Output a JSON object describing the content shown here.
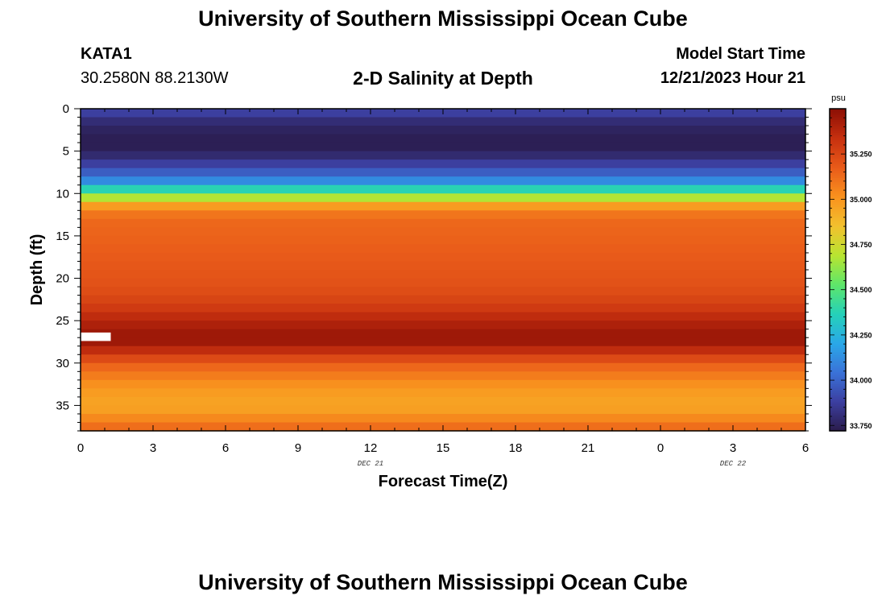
{
  "page": {
    "title": "University of Southern Mississippi Ocean Cube",
    "title_bottom": "University of Southern Mississippi Ocean Cube",
    "station_id": "KATA1",
    "coords": "30.2580N  88.2130W",
    "subtitle": "2-D Salinity at Depth",
    "model_start_label": "Model Start Time",
    "model_start_value": "12/21/2023 Hour 21"
  },
  "chart_data": {
    "type": "heatmap",
    "title": "2-D Salinity at Depth",
    "xlabel": "Forecast Time(Z)",
    "ylabel": "Depth (ft)",
    "x_ticks": [
      "0",
      "3",
      "6",
      "9",
      "12",
      "15",
      "18",
      "21",
      "0",
      "3",
      "6"
    ],
    "x_date_labels": [
      {
        "text": "DEC 21",
        "at_tick": 4
      },
      {
        "text": "DEC 22",
        "at_tick": 9
      }
    ],
    "ylim": [
      38,
      0
    ],
    "y_ticks": [
      0,
      5,
      10,
      15,
      20,
      25,
      30,
      35
    ],
    "x_hours": 30,
    "depth_layers": [
      {
        "top": 0,
        "bottom": 1,
        "salinity": 33.88
      },
      {
        "top": 1,
        "bottom": 2,
        "salinity": 33.8
      },
      {
        "top": 2,
        "bottom": 3,
        "salinity": 33.76
      },
      {
        "top": 3,
        "bottom": 4,
        "salinity": 33.74
      },
      {
        "top": 4,
        "bottom": 5,
        "salinity": 33.74
      },
      {
        "top": 5,
        "bottom": 6,
        "salinity": 33.79
      },
      {
        "top": 6,
        "bottom": 7,
        "salinity": 33.88
      },
      {
        "top": 7,
        "bottom": 8,
        "salinity": 33.98
      },
      {
        "top": 8,
        "bottom": 9,
        "salinity": 34.12
      },
      {
        "top": 9,
        "bottom": 10,
        "salinity": 34.38
      },
      {
        "top": 10,
        "bottom": 11,
        "salinity": 34.68
      },
      {
        "top": 11,
        "bottom": 12,
        "salinity": 34.98
      },
      {
        "top": 12,
        "bottom": 13,
        "salinity": 35.1
      },
      {
        "top": 13,
        "bottom": 14,
        "salinity": 35.14
      },
      {
        "top": 14,
        "bottom": 15,
        "salinity": 35.15
      },
      {
        "top": 15,
        "bottom": 16,
        "salinity": 35.16
      },
      {
        "top": 16,
        "bottom": 17,
        "salinity": 35.17
      },
      {
        "top": 17,
        "bottom": 18,
        "salinity": 35.18
      },
      {
        "top": 18,
        "bottom": 19,
        "salinity": 35.19
      },
      {
        "top": 19,
        "bottom": 20,
        "salinity": 35.2
      },
      {
        "top": 20,
        "bottom": 21,
        "salinity": 35.21
      },
      {
        "top": 21,
        "bottom": 22,
        "salinity": 35.23
      },
      {
        "top": 22,
        "bottom": 23,
        "salinity": 35.26
      },
      {
        "top": 23,
        "bottom": 24,
        "salinity": 35.3
      },
      {
        "top": 24,
        "bottom": 25,
        "salinity": 35.36
      },
      {
        "top": 25,
        "bottom": 26,
        "salinity": 35.41
      },
      {
        "top": 26,
        "bottom": 27,
        "salinity": 35.45
      },
      {
        "top": 27,
        "bottom": 28,
        "salinity": 35.45
      },
      {
        "top": 28,
        "bottom": 29,
        "salinity": 35.36
      },
      {
        "top": 29,
        "bottom": 30,
        "salinity": 35.24
      },
      {
        "top": 30,
        "bottom": 31,
        "salinity": 35.14
      },
      {
        "top": 31,
        "bottom": 32,
        "salinity": 35.08
      },
      {
        "top": 32,
        "bottom": 33,
        "salinity": 35.02
      },
      {
        "top": 33,
        "bottom": 34,
        "salinity": 34.98
      },
      {
        "top": 34,
        "bottom": 35,
        "salinity": 34.96
      },
      {
        "top": 35,
        "bottom": 36,
        "salinity": 34.97
      },
      {
        "top": 36,
        "bottom": 37,
        "salinity": 35.04
      },
      {
        "top": 37,
        "bottom": 38,
        "salinity": 35.12
      }
    ],
    "missing_patch": {
      "x_start": 0,
      "x_end": 1.25,
      "depth_top": 26.4,
      "depth_bottom": 27.4,
      "color": "#ffffff"
    },
    "colorbar": {
      "unit": "psu",
      "range": [
        33.72,
        35.5
      ],
      "ticks": [
        "33.750",
        "34.000",
        "34.250",
        "34.500",
        "34.750",
        "35.000",
        "35.250"
      ],
      "tick_values": [
        33.75,
        34.0,
        34.25,
        34.5,
        34.75,
        35.0,
        35.25
      ]
    },
    "colormap": [
      "#2a1b4a",
      "#3c3fa0",
      "#3a72d8",
      "#2aa8e8",
      "#25d1b9",
      "#5ee66a",
      "#b8e531",
      "#f2c12e",
      "#f9921e",
      "#e95b1a",
      "#c7300f",
      "#8c0f05"
    ],
    "grid": false
  }
}
